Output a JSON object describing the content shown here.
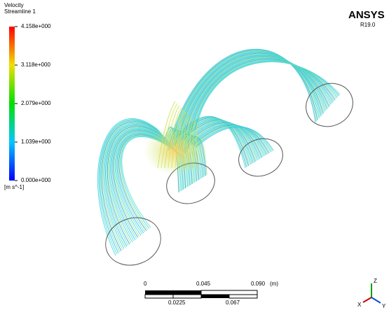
{
  "legend": {
    "title": "Velocity",
    "subtitle": "Streamline 1",
    "labels": [
      "4.158e+000",
      "3.118e+000",
      "2.079e+000",
      "1.039e+000",
      "0.000e+000"
    ],
    "units": "[m s^-1]"
  },
  "brand": {
    "name": "ANSYS",
    "version": "R19.0"
  },
  "scale_bar": {
    "top_labels": [
      "0",
      "0.045",
      "0.090"
    ],
    "unit": "(m)",
    "bottom_labels": [
      "0.0225",
      "0.067"
    ]
  },
  "triad": {
    "z": "Z",
    "x": "X",
    "y": "Y"
  }
}
